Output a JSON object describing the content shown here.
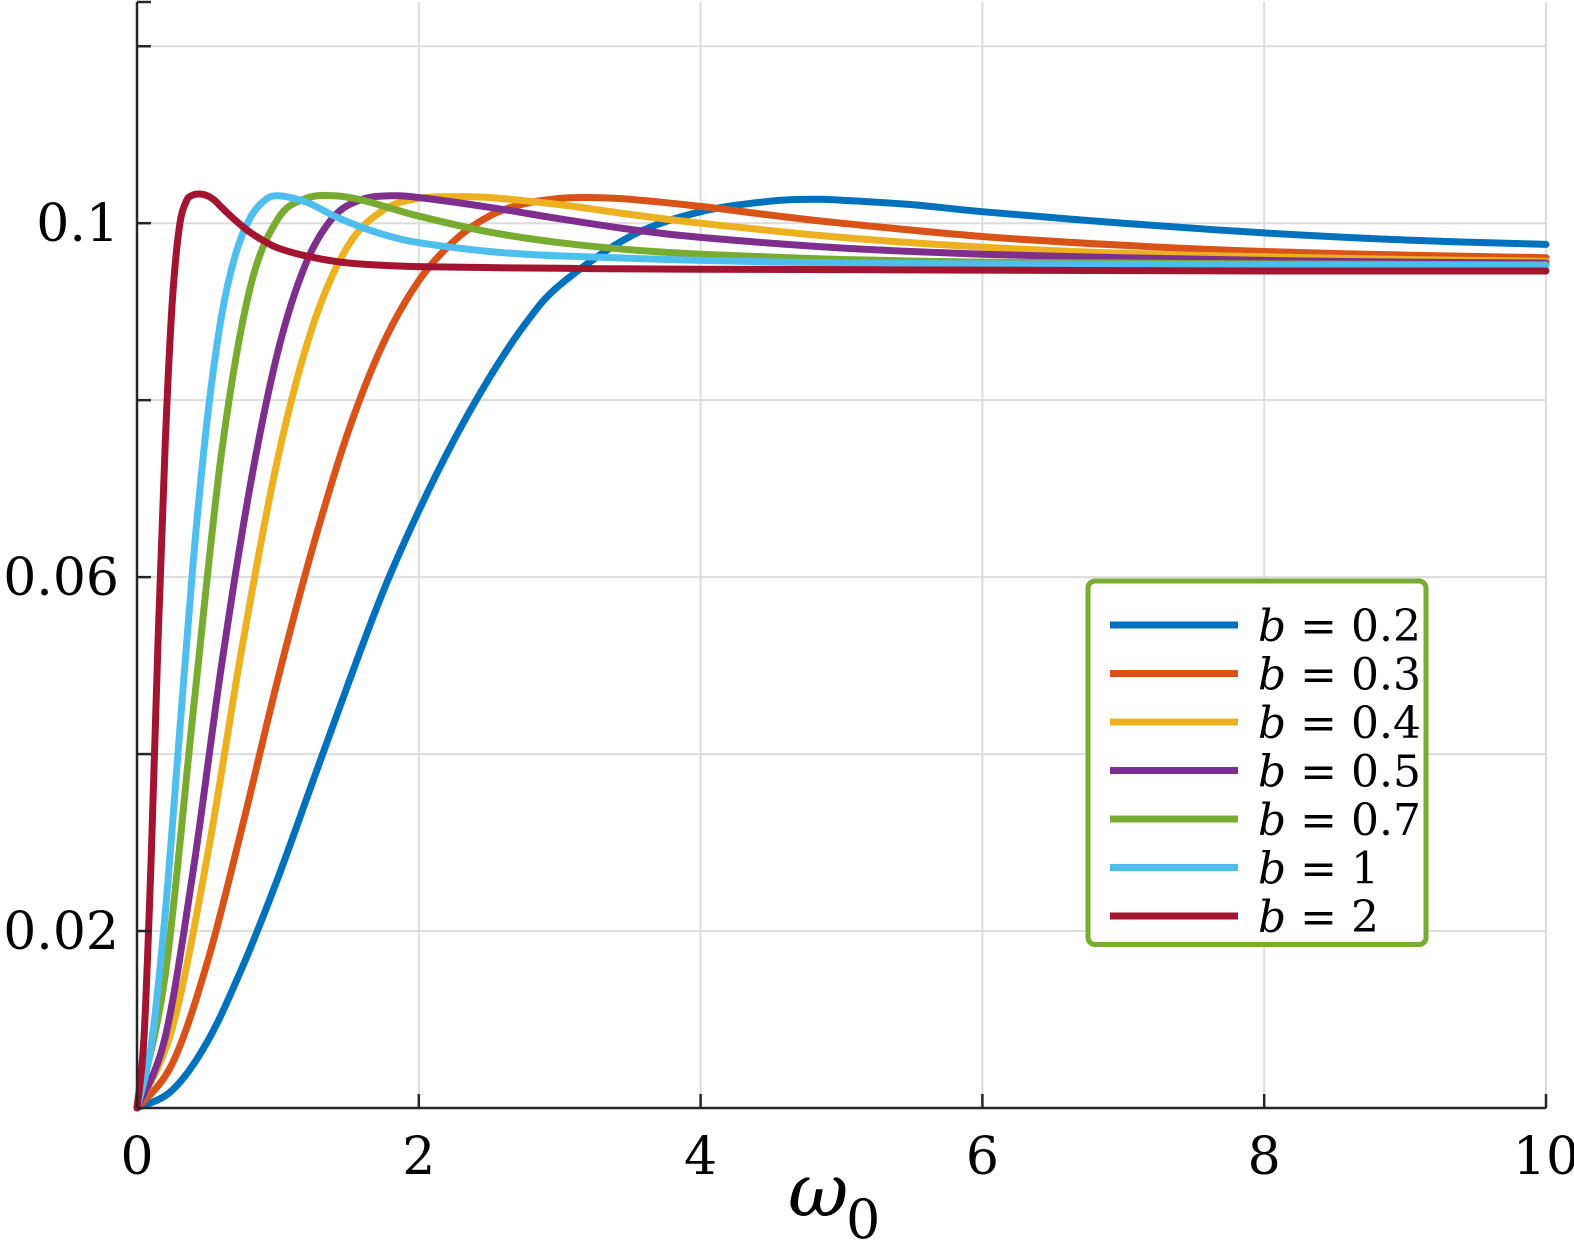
{
  "chart_data": {
    "type": "line",
    "title": "",
    "xlabel": "ω",
    "xlabel_subscript": "0",
    "ylabel": "",
    "xlim": [
      0,
      10
    ],
    "ylim": [
      0,
      0.125
    ],
    "grid": true,
    "x_ticks": [
      0,
      2,
      4,
      6,
      8,
      10
    ],
    "x_tick_labels": [
      "0",
      "2",
      "4",
      "6",
      "8",
      "10"
    ],
    "y_ticks": [
      0.02,
      0.04,
      0.06,
      0.08,
      0.1,
      0.12
    ],
    "y_tick_labels": [
      "0.02",
      "",
      "0.06",
      "",
      "0.1",
      ""
    ],
    "legend_position": "lower-right",
    "legend_border_color": "#77ac30",
    "series": [
      {
        "name": "b = 0.2",
        "var": "b",
        "rel": "=",
        "val": "0.2",
        "color": "#0072bd",
        "x": [
          0,
          0.25,
          0.5,
          0.75,
          1,
          1.25,
          1.5,
          1.75,
          2,
          2.25,
          2.5,
          2.75,
          3,
          3.5,
          4,
          4.5,
          4.8,
          5,
          5.5,
          6,
          7,
          8,
          9,
          10
        ],
        "y": [
          0.0,
          0.002,
          0.0075,
          0.016,
          0.026,
          0.037,
          0.048,
          0.0585,
          0.0675,
          0.0755,
          0.0825,
          0.0885,
          0.093,
          0.0985,
          0.1013,
          0.1025,
          0.1027,
          0.1026,
          0.1021,
          0.1013,
          0.1,
          0.0989,
          0.0981,
          0.0976
        ]
      },
      {
        "name": "b = 0.3",
        "var": "b",
        "rel": "=",
        "val": "0.3",
        "color": "#d95319",
        "x": [
          0,
          0.25,
          0.5,
          0.75,
          1,
          1.25,
          1.5,
          1.75,
          2,
          2.25,
          2.5,
          2.75,
          3,
          3.2,
          3.5,
          4,
          4.5,
          5,
          6,
          7,
          8,
          9,
          10
        ],
        "y": [
          0.0,
          0.005,
          0.0165,
          0.032,
          0.0485,
          0.0635,
          0.0765,
          0.0865,
          0.0935,
          0.098,
          0.1008,
          0.1022,
          0.1028,
          0.1029,
          0.1027,
          0.1019,
          0.1009,
          0.1,
          0.0985,
          0.0975,
          0.0968,
          0.0964,
          0.0961
        ]
      },
      {
        "name": "b = 0.4",
        "var": "b",
        "rel": "=",
        "val": "0.4",
        "color": "#edb120",
        "x": [
          0,
          0.25,
          0.5,
          0.75,
          1,
          1.25,
          1.5,
          1.75,
          2,
          2.25,
          2.5,
          3,
          3.5,
          4,
          5,
          6,
          7,
          8,
          9,
          10
        ],
        "y": [
          0.0,
          0.009,
          0.0285,
          0.0525,
          0.0735,
          0.0885,
          0.0975,
          0.1015,
          0.1028,
          0.103,
          0.1029,
          0.1021,
          0.101,
          0.1,
          0.0984,
          0.0973,
          0.0966,
          0.0962,
          0.0959,
          0.0957
        ]
      },
      {
        "name": "b = 0.5",
        "var": "b",
        "rel": "=",
        "val": "0.5",
        "color": "#7e2f8e",
        "x": [
          0,
          0.2,
          0.4,
          0.6,
          0.8,
          1,
          1.2,
          1.4,
          1.6,
          1.8,
          2,
          2.5,
          3,
          3.5,
          4,
          5,
          6,
          7,
          8,
          9,
          10
        ],
        "y": [
          0.0,
          0.008,
          0.027,
          0.05,
          0.07,
          0.0855,
          0.0955,
          0.1008,
          0.1027,
          0.1031,
          0.1029,
          0.1018,
          0.1005,
          0.0993,
          0.0984,
          0.0972,
          0.0965,
          0.0961,
          0.0958,
          0.0956,
          0.0955
        ]
      },
      {
        "name": "b = 0.7",
        "var": "b",
        "rel": "=",
        "val": "0.7",
        "color": "#77ac30",
        "x": [
          0,
          0.2,
          0.4,
          0.6,
          0.8,
          1,
          1.2,
          1.4,
          1.6,
          1.8,
          2,
          2.5,
          3,
          3.5,
          4,
          5,
          6,
          7,
          8,
          10
        ],
        "y": [
          0.0,
          0.015,
          0.045,
          0.074,
          0.0925,
          0.1005,
          0.1028,
          0.1031,
          0.1026,
          0.1017,
          0.1008,
          0.099,
          0.0978,
          0.097,
          0.0965,
          0.0959,
          0.0956,
          0.0955,
          0.0954,
          0.0953
        ]
      },
      {
        "name": "b = 1",
        "var": "b",
        "rel": "=",
        "val": "1",
        "color": "#4dbeee",
        "x": [
          0,
          0.1,
          0.2,
          0.3,
          0.4,
          0.5,
          0.6,
          0.7,
          0.8,
          0.9,
          1,
          1.2,
          1.4,
          1.6,
          1.8,
          2,
          2.5,
          3,
          4,
          5,
          6,
          8,
          10
        ],
        "y": [
          0.0,
          0.007,
          0.022,
          0.042,
          0.062,
          0.078,
          0.0895,
          0.0965,
          0.1005,
          0.1025,
          0.1031,
          0.1024,
          0.1008,
          0.0995,
          0.0985,
          0.0978,
          0.0968,
          0.0963,
          0.0958,
          0.0955,
          0.0954,
          0.0953,
          0.0952
        ]
      },
      {
        "name": "b = 2",
        "var": "b",
        "rel": "=",
        "val": "2",
        "color": "#a2142f",
        "x": [
          0,
          0.05,
          0.1,
          0.15,
          0.2,
          0.25,
          0.3,
          0.35,
          0.4,
          0.45,
          0.5,
          0.55,
          0.6,
          0.7,
          0.8,
          0.9,
          1,
          1.2,
          1.5,
          2,
          3,
          4,
          6,
          8,
          10
        ],
        "y": [
          0.0,
          0.008,
          0.028,
          0.053,
          0.075,
          0.091,
          0.0995,
          0.1025,
          0.1032,
          0.1033,
          0.1031,
          0.1026,
          0.1018,
          0.1003,
          0.099,
          0.098,
          0.0972,
          0.0963,
          0.0955,
          0.0951,
          0.0949,
          0.0948,
          0.0947,
          0.0946,
          0.0946
        ]
      }
    ]
  }
}
